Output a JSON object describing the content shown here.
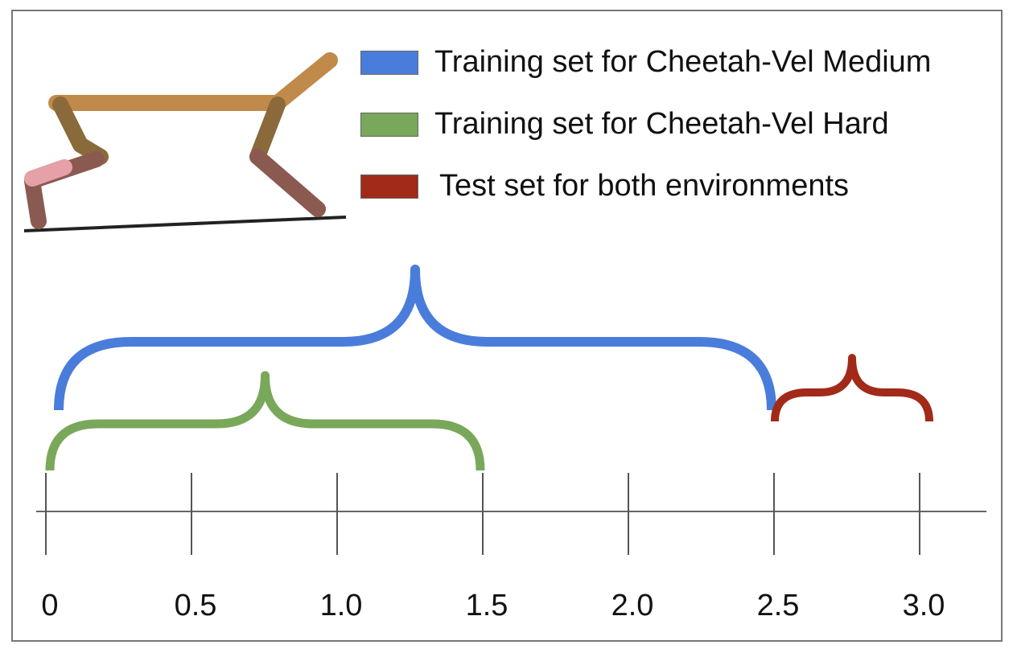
{
  "legend": [
    {
      "label": "Training set for Cheetah-Vel Medium",
      "color": "#4a7ddb"
    },
    {
      "label": "Training set for Cheetah-Vel Hard",
      "color": "#79a85a"
    },
    {
      "label": "Test set for both environments",
      "color": "#a12a18"
    }
  ],
  "axis": {
    "ticks": [
      {
        "value": 0,
        "label": "0"
      },
      {
        "value": 0.5,
        "label": "0.5"
      },
      {
        "value": 1.0,
        "label": "1.0"
      },
      {
        "value": 1.5,
        "label": "1.5"
      },
      {
        "value": 2.0,
        "label": "2.0"
      },
      {
        "value": 2.5,
        "label": "2.5"
      },
      {
        "value": 3.0,
        "label": "3.0"
      }
    ]
  },
  "ranges": [
    {
      "name": "Training set for Cheetah-Vel Medium",
      "from": 0,
      "to": 2.5,
      "color": "#4a7ddb"
    },
    {
      "name": "Training set for Cheetah-Vel Hard",
      "from": 0,
      "to": 1.5,
      "color": "#79a85a"
    },
    {
      "name": "Test set for both environments",
      "from": 2.5,
      "to": 3.0,
      "color": "#a12a18"
    }
  ],
  "figure": {
    "subject": "half-cheetah robot",
    "colors": {
      "body": "#c08a4a",
      "thigh": "#8a6a3a",
      "shin": "#8a5a50",
      "foot": "#e5a0a8"
    }
  }
}
